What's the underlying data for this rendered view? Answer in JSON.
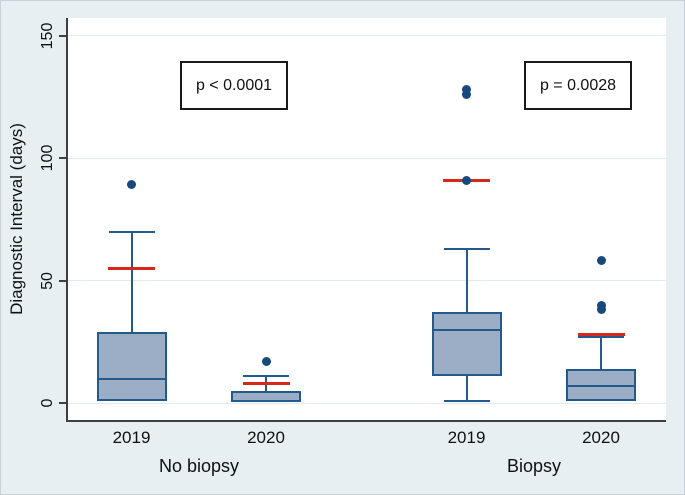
{
  "chart_data": {
    "type": "boxplot",
    "title": "",
    "xlabel": "",
    "ylabel": "Diagnostic Interval (days)",
    "yticks": [
      0,
      50,
      100,
      150
    ],
    "ylim": [
      -7,
      157
    ],
    "grid": true,
    "legend": "none",
    "groups": [
      {
        "label": "No biopsy",
        "p_label": "p < 0.0001",
        "boxes": [
          {
            "category": "2019",
            "q1": 1,
            "median": 10,
            "q3": 29,
            "whisker_low": 1,
            "whisker_high": 70,
            "mean_marker": 55,
            "outliers": [
              89
            ]
          },
          {
            "category": "2020",
            "q1": 0.5,
            "median": 1,
            "q3": 5,
            "whisker_low": 0.5,
            "whisker_high": 11,
            "mean_marker": 8,
            "outliers": [
              17
            ]
          }
        ]
      },
      {
        "label": "Biopsy",
        "p_label": "p = 0.0028",
        "boxes": [
          {
            "category": "2019",
            "q1": 11,
            "median": 30,
            "q3": 37,
            "whisker_low": 1,
            "whisker_high": 63,
            "mean_marker": 91,
            "outliers": [
              91,
              126,
              128
            ]
          },
          {
            "category": "2020",
            "q1": 1,
            "median": 7,
            "q3": 14,
            "whisker_low": 1,
            "whisker_high": 27,
            "mean_marker": 28,
            "outliers": [
              38,
              40,
              58
            ]
          }
        ]
      }
    ],
    "colors": {
      "box_fill": "#9BAEC5",
      "box_border": "#24598C",
      "outlier_dot": "#17497B",
      "mean_line": "#D6291E",
      "gridline": "#E2EBF1",
      "axis_line": "#3F3F3F",
      "plot_background": "#FFFFFF",
      "figure_background": "#E7EFF3",
      "annotation_border": "#1A1A1A",
      "text": "#111111"
    }
  }
}
